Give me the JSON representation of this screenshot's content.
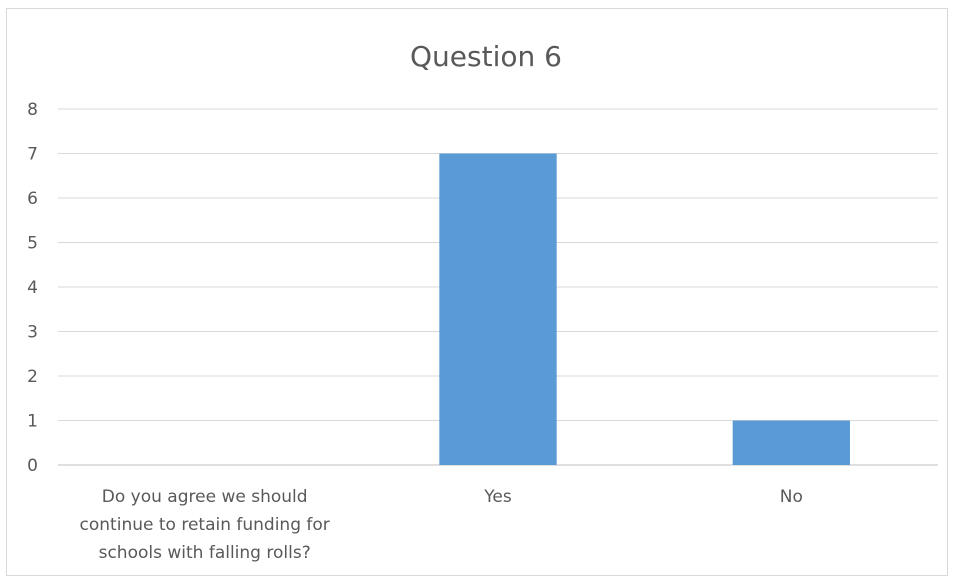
{
  "chart_data": {
    "type": "bar",
    "title": "Question 6",
    "categories": [
      "Do you agree we should continue to retain funding for schools with falling rolls?",
      "Yes",
      "No"
    ],
    "category_lines": [
      [
        "Do you agree we should",
        "continue to retain funding for",
        "schools with falling rolls?"
      ],
      [
        "Yes"
      ],
      [
        "No"
      ]
    ],
    "values": [
      null,
      7,
      1
    ],
    "ylim": [
      0,
      8
    ],
    "yticks": [
      0,
      1,
      2,
      3,
      4,
      5,
      6,
      7,
      8
    ],
    "grid": true,
    "legend": "none",
    "bar_color": "#5b9bd5",
    "xlabel": "",
    "ylabel": ""
  }
}
